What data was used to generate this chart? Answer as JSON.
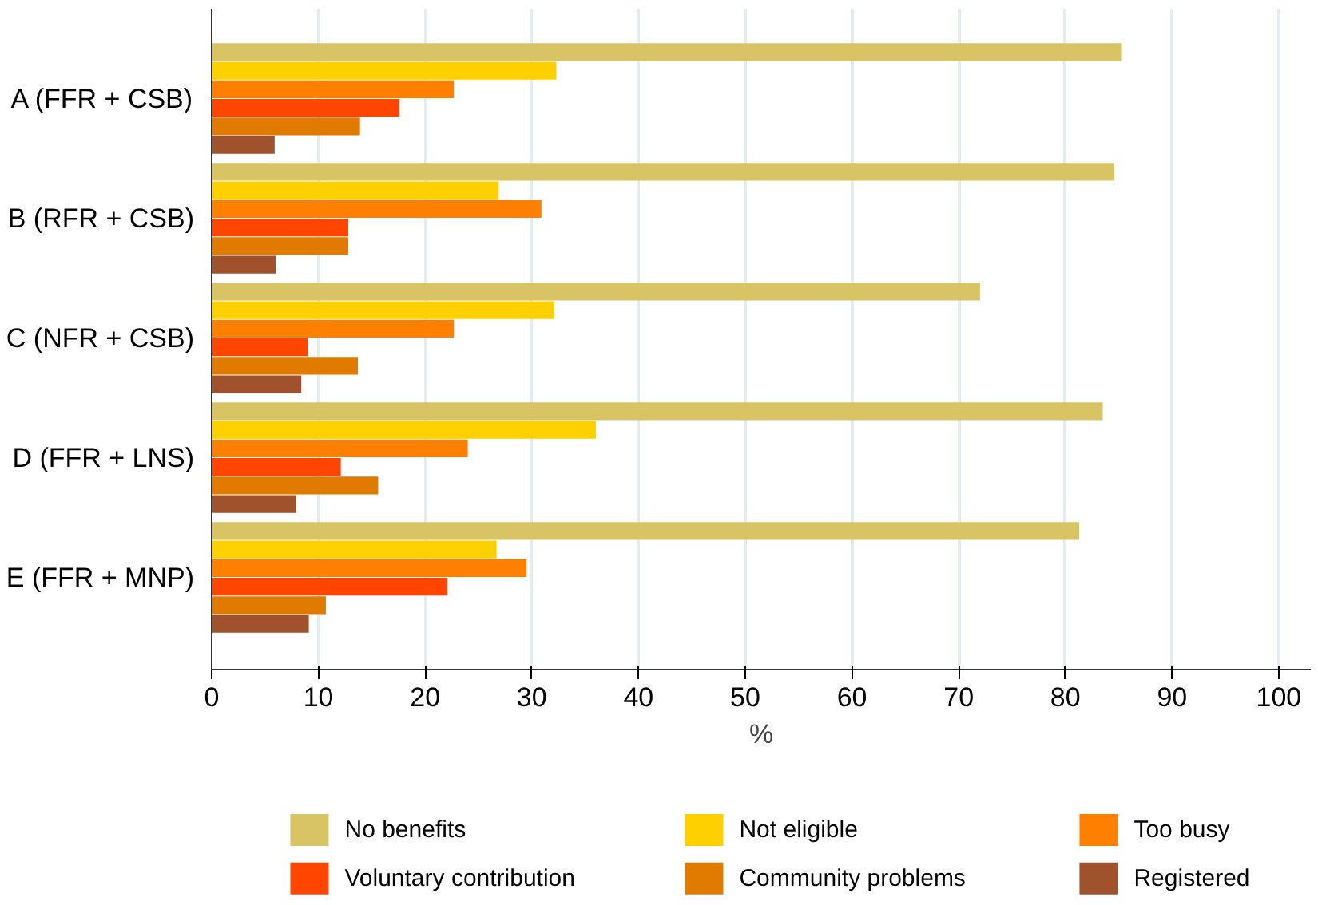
{
  "chart_data": {
    "type": "bar",
    "orientation": "horizontal",
    "xlabel": "%",
    "categories": [
      "A (FFR + CSB)",
      "B (RFR + CSB)",
      "C (NFR + CSB)",
      "D (FFR + LNS)",
      "E (FFR + MNP)"
    ],
    "series": [
      {
        "name": "No benefits",
        "color": "#d8c365",
        "values": [
          85.3,
          84.6,
          72.0,
          83.5,
          81.3
        ]
      },
      {
        "name": "Not eligible",
        "color": "#ffd000",
        "values": [
          32.3,
          26.9,
          32.1,
          36.0,
          26.7
        ]
      },
      {
        "name": "Too busy",
        "color": "#ff7f00",
        "values": [
          22.7,
          30.9,
          22.7,
          24.0,
          29.5
        ]
      },
      {
        "name": "Voluntary contribution",
        "color": "#ff4500",
        "values": [
          17.6,
          12.8,
          9.0,
          12.1,
          22.1
        ]
      },
      {
        "name": "Community problems",
        "color": "#e07b00",
        "values": [
          13.9,
          12.8,
          13.7,
          15.6,
          10.7
        ]
      },
      {
        "name": "Registered",
        "color": "#a0522d",
        "values": [
          5.9,
          6.0,
          8.4,
          7.9,
          9.1
        ]
      }
    ],
    "xlim": [
      0,
      103
    ],
    "xticks": [
      0,
      10,
      20,
      30,
      40,
      50,
      60,
      70,
      80,
      90,
      100
    ],
    "grid": "x",
    "legend": "bottom"
  }
}
